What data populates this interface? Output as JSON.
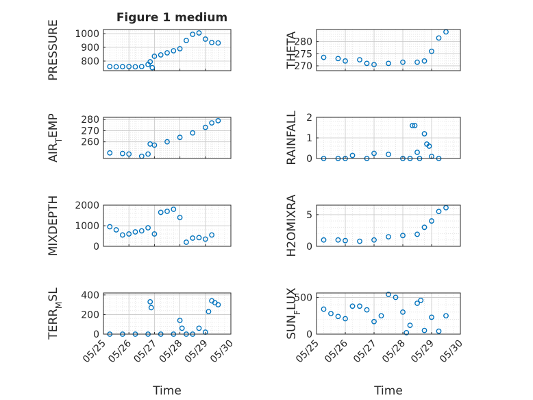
{
  "figure": {
    "title": "Figure 1 medium"
  },
  "colors": {
    "series": "#0072BD",
    "axis": "#262626",
    "grid": "#c8c8c8",
    "minor_grid": "#e3e3e3",
    "background": "#ffffff"
  },
  "chart_data": [
    {
      "type": "scatter",
      "panel": "top-left",
      "title": "Figure 1 medium",
      "xlabel": "",
      "ylabel": "PRESSURE",
      "xlim": [
        "05/25",
        "05/30"
      ],
      "ylim": [
        730,
        1030
      ],
      "yticks": [
        800,
        900,
        1000
      ],
      "grid": true,
      "show_xticklabels": false,
      "x": [
        "05/25 06:00",
        "05/25 12:00",
        "05/25 18:00",
        "05/26 00:00",
        "05/26 06:00",
        "05/26 12:00",
        "05/26 18:00",
        "05/26 20:00",
        "05/26 22:00",
        "05/27 00:00",
        "05/27 06:00",
        "05/27 12:00",
        "05/27 18:00",
        "05/28 00:00",
        "05/28 06:00",
        "05/28 12:00",
        "05/28 18:00",
        "05/29 00:00",
        "05/29 06:00",
        "05/29 12:00"
      ],
      "series": [
        {
          "values": [
            760,
            758,
            759,
            760,
            758,
            760,
            775,
            795,
            752,
            835,
            845,
            860,
            875,
            890,
            950,
            995,
            1005,
            960,
            935,
            932
          ]
        }
      ]
    },
    {
      "type": "scatter",
      "panel": "top-right",
      "xlabel": "",
      "ylabel": "THETA",
      "xlim": [
        "05/25",
        "05/30"
      ],
      "ylim": [
        268,
        285
      ],
      "yticks": [
        270,
        275,
        280
      ],
      "grid": true,
      "show_xticklabels": false,
      "x": [
        "05/25 06:00",
        "05/25 18:00",
        "05/26 00:00",
        "05/26 12:00",
        "05/26 18:00",
        "05/27 00:00",
        "05/27 12:00",
        "05/28 00:00",
        "05/28 12:00",
        "05/28 18:00",
        "05/29 00:00",
        "05/29 06:00",
        "05/29 12:00"
      ],
      "series": [
        {
          "values": [
            273.5,
            273,
            272,
            272.5,
            271,
            270.5,
            271,
            271.5,
            271.5,
            272,
            276,
            281.5,
            284
          ]
        }
      ]
    },
    {
      "type": "scatter",
      "panel": "second-left",
      "xlabel": "",
      "ylabel": "AIR_TEMP",
      "xlim": [
        "05/25",
        "05/30"
      ],
      "ylim": [
        245,
        282
      ],
      "yticks": [
        260,
        270,
        280
      ],
      "grid": true,
      "show_xticklabels": false,
      "x": [
        "05/25 06:00",
        "05/25 18:00",
        "05/26 00:00",
        "05/26 12:00",
        "05/26 18:00",
        "05/26 20:00",
        "05/27 00:00",
        "05/27 12:00",
        "05/28 00:00",
        "05/28 12:00",
        "05/29 00:00",
        "05/29 06:00",
        "05/29 12:00"
      ],
      "series": [
        {
          "values": [
            250,
            249.5,
            249,
            247,
            249,
            258,
            257,
            260,
            264,
            268,
            273,
            277,
            279
          ]
        }
      ]
    },
    {
      "type": "scatter",
      "panel": "second-right",
      "xlabel": "",
      "ylabel": "RAINFALL",
      "xlim": [
        "05/25",
        "05/30"
      ],
      "ylim": [
        0,
        2
      ],
      "yticks": [
        0,
        1,
        2
      ],
      "grid": true,
      "show_xticklabels": false,
      "x": [
        "05/25 06:00",
        "05/25 18:00",
        "05/26 00:00",
        "05/26 06:00",
        "05/26 18:00",
        "05/27 00:00",
        "05/27 12:00",
        "05/28 00:00",
        "05/28 06:00",
        "05/28 08:00",
        "05/28 10:00",
        "05/28 12:00",
        "05/28 14:00",
        "05/28 18:00",
        "05/28 20:00",
        "05/28 22:00",
        "05/29 00:00",
        "05/29 06:00"
      ],
      "series": [
        {
          "values": [
            0,
            0,
            0,
            0.15,
            0,
            0.25,
            0.2,
            0,
            0,
            1.6,
            1.6,
            0.3,
            0,
            1.2,
            0.7,
            0.6,
            0.1,
            0
          ]
        }
      ]
    },
    {
      "type": "scatter",
      "panel": "third-left",
      "xlabel": "",
      "ylabel": "MIXDEPTH",
      "xlim": [
        "05/25",
        "05/30"
      ],
      "ylim": [
        0,
        2000
      ],
      "yticks": [
        0,
        1000,
        2000
      ],
      "grid": true,
      "show_xticklabels": false,
      "x": [
        "05/25 06:00",
        "05/25 12:00",
        "05/25 18:00",
        "05/26 00:00",
        "05/26 06:00",
        "05/26 12:00",
        "05/26 18:00",
        "05/27 00:00",
        "05/27 06:00",
        "05/27 12:00",
        "05/27 18:00",
        "05/28 00:00",
        "05/28 06:00",
        "05/28 12:00",
        "05/28 18:00",
        "05/29 00:00",
        "05/29 06:00"
      ],
      "series": [
        {
          "values": [
            950,
            800,
            550,
            600,
            700,
            750,
            900,
            600,
            1650,
            1700,
            1800,
            1400,
            200,
            400,
            420,
            350,
            550
          ]
        }
      ]
    },
    {
      "type": "scatter",
      "panel": "third-right",
      "xlabel": "",
      "ylabel": "H2OMIXRA",
      "xlim": [
        "05/25",
        "05/30"
      ],
      "ylim": [
        0,
        6.5
      ],
      "yticks": [
        0,
        5
      ],
      "grid": true,
      "show_xticklabels": false,
      "x": [
        "05/25 06:00",
        "05/25 18:00",
        "05/26 00:00",
        "05/26 12:00",
        "05/27 00:00",
        "05/27 12:00",
        "05/28 00:00",
        "05/28 12:00",
        "05/28 18:00",
        "05/29 00:00",
        "05/29 06:00",
        "05/29 12:00"
      ],
      "series": [
        {
          "values": [
            1.0,
            1.0,
            0.9,
            0.8,
            1.0,
            1.5,
            1.7,
            1.9,
            3.0,
            4.0,
            5.5,
            6.1
          ]
        }
      ]
    },
    {
      "type": "scatter",
      "panel": "bottom-left",
      "xlabel": "Time",
      "ylabel": "TERR_MSL",
      "xlim": [
        "05/25",
        "05/30"
      ],
      "ylim": [
        0,
        420
      ],
      "yticks": [
        0,
        200,
        400
      ],
      "grid": true,
      "show_xticklabels": true,
      "xticks": [
        "05/25",
        "05/26",
        "05/27",
        "05/28",
        "05/29",
        "05/30"
      ],
      "x": [
        "05/25 06:00",
        "05/25 18:00",
        "05/26 06:00",
        "05/26 18:00",
        "05/26 20:00",
        "05/26 21:00",
        "05/27 06:00",
        "05/27 18:00",
        "05/28 00:00",
        "05/28 02:00",
        "05/28 06:00",
        "05/28 12:00",
        "05/28 18:00",
        "05/29 00:00",
        "05/29 03:00",
        "05/29 06:00",
        "05/29 09:00",
        "05/29 12:00"
      ],
      "series": [
        {
          "values": [
            0,
            0,
            0,
            0,
            330,
            270,
            0,
            0,
            140,
            60,
            0,
            0,
            60,
            20,
            230,
            340,
            320,
            300
          ]
        }
      ]
    },
    {
      "type": "scatter",
      "panel": "bottom-right",
      "xlabel": "Time",
      "ylabel": "SUN_FLUX",
      "xlim": [
        "05/25",
        "05/30"
      ],
      "ylim": [
        0,
        560
      ],
      "yticks": [
        0,
        500
      ],
      "grid": true,
      "show_xticklabels": true,
      "xticks": [
        "05/25",
        "05/26",
        "05/27",
        "05/28",
        "05/29",
        "05/30"
      ],
      "x": [
        "05/25 06:00",
        "05/25 12:00",
        "05/25 18:00",
        "05/26 00:00",
        "05/26 06:00",
        "05/26 12:00",
        "05/26 18:00",
        "05/27 00:00",
        "05/27 06:00",
        "05/27 12:00",
        "05/27 18:00",
        "05/28 00:00",
        "05/28 03:00",
        "05/28 06:00",
        "05/28 12:00",
        "05/28 15:00",
        "05/28 18:00",
        "05/29 00:00",
        "05/29 06:00",
        "05/29 12:00"
      ],
      "series": [
        {
          "values": [
            340,
            280,
            240,
            210,
            380,
            380,
            330,
            170,
            250,
            540,
            500,
            300,
            20,
            120,
            420,
            460,
            50,
            230,
            40,
            250
          ]
        }
      ]
    }
  ]
}
